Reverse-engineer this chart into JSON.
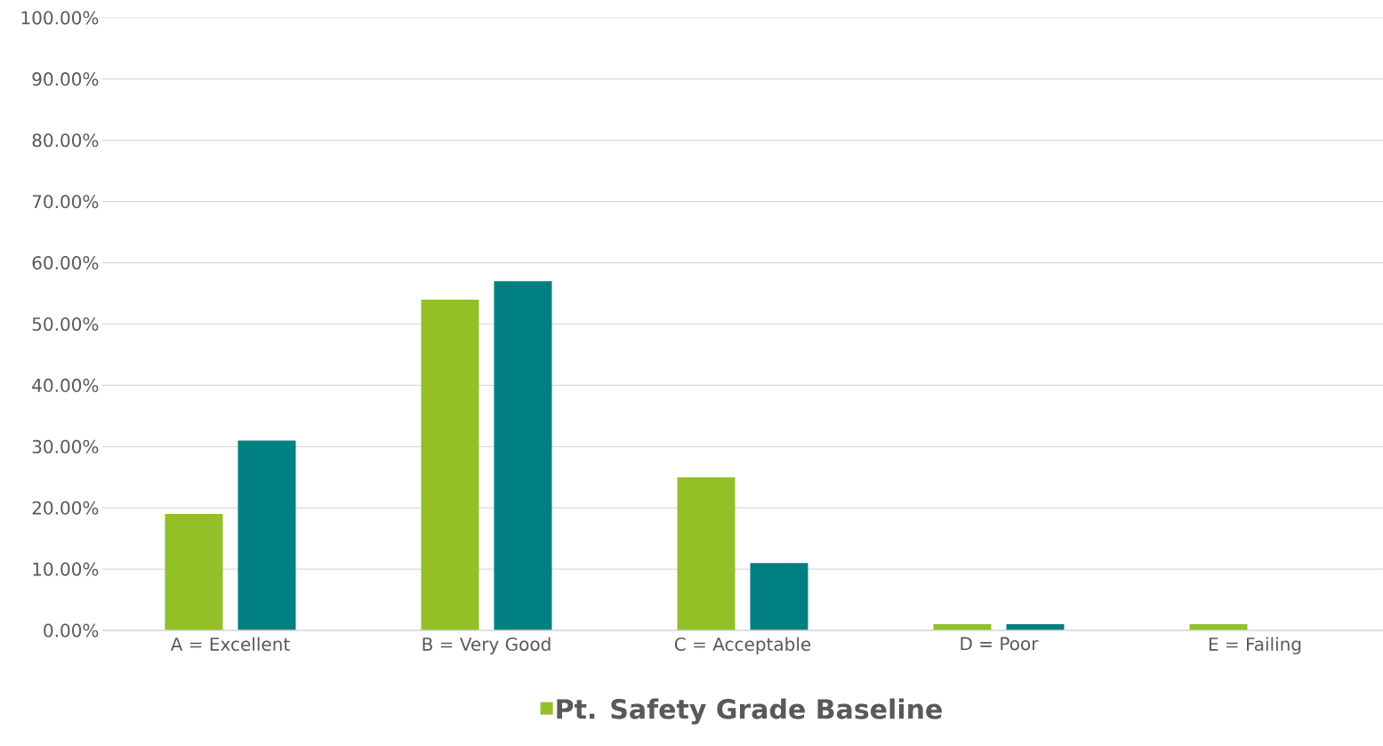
{
  "chart_data": {
    "type": "bar",
    "categories": [
      "A = Excellent",
      "B = Very Good",
      "C = Acceptable",
      "D = Poor",
      "E = Failing"
    ],
    "series": [
      {
        "name": "Pt. Safety Grade Baseline",
        "color": "#92c026",
        "values": [
          19,
          54,
          25,
          1,
          1
        ]
      },
      {
        "color": "#008080",
        "values": [
          31,
          57,
          11,
          1,
          null
        ]
      }
    ],
    "ylim": [
      0,
      100
    ],
    "yticks": [
      {
        "value": 0,
        "label": "0.00%"
      },
      {
        "value": 10,
        "label": "10.00%"
      },
      {
        "value": 20,
        "label": "20.00%"
      },
      {
        "value": 30,
        "label": "30.00%"
      },
      {
        "value": 40,
        "label": "40.00%"
      },
      {
        "value": 50,
        "label": "50.00%"
      },
      {
        "value": 60,
        "label": "60.00%"
      },
      {
        "value": 70,
        "label": "70.00%"
      },
      {
        "value": 80,
        "label": "80.00%"
      },
      {
        "value": 90,
        "label": "90.00%"
      },
      {
        "value": 100,
        "label": "100.00%"
      }
    ],
    "grid": "y",
    "legend": "bottom"
  }
}
